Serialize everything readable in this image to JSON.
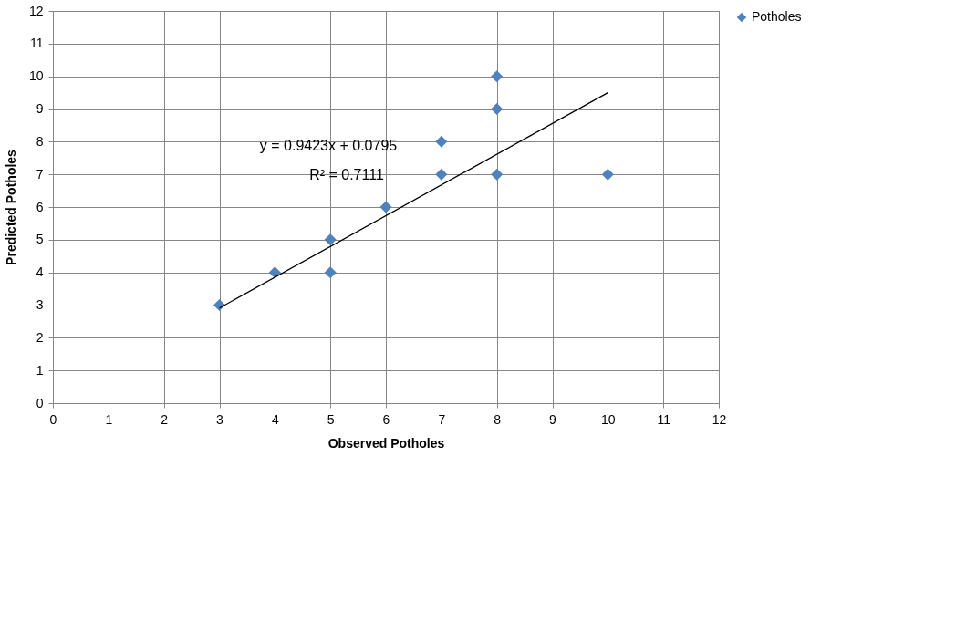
{
  "chart_data": {
    "type": "scatter",
    "xlabel": "Observed Potholes",
    "ylabel": "Predicted Potholes",
    "xlim": [
      0,
      12
    ],
    "ylim": [
      0,
      12
    ],
    "xticks": [
      0,
      1,
      2,
      3,
      4,
      5,
      6,
      7,
      8,
      9,
      10,
      11,
      12
    ],
    "yticks": [
      0,
      1,
      2,
      3,
      4,
      5,
      6,
      7,
      8,
      9,
      10,
      11,
      12
    ],
    "grid": true,
    "legend": "right",
    "marker": "diamond",
    "series": [
      {
        "name": "Potholes",
        "color": "#4f81bd",
        "x": [
          3,
          4,
          5,
          5,
          6,
          7,
          7,
          8,
          8,
          8,
          10
        ],
        "values": [
          3,
          4,
          5,
          4,
          6,
          8,
          7,
          10,
          9,
          7,
          7
        ]
      },
      {
        "type": "line",
        "color": "#000000",
        "x": [
          3,
          10
        ],
        "values": [
          2.91,
          9.5
        ],
        "line_style": "solid",
        "marker": "none"
      }
    ],
    "annotations": [
      "y = 0.9423x + 0.0795",
      "R² = 0.7111"
    ]
  }
}
